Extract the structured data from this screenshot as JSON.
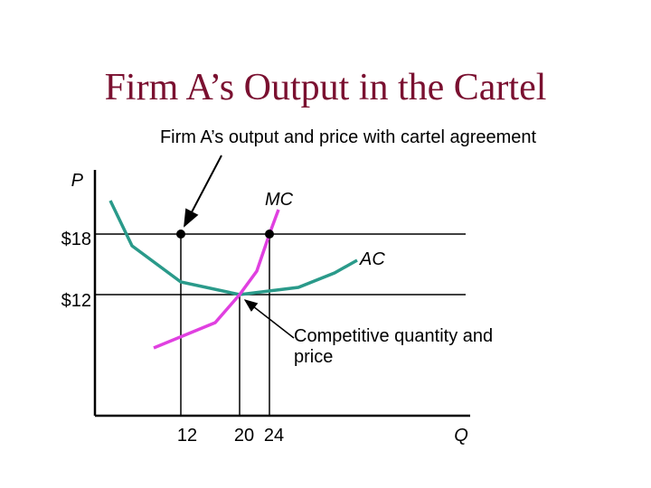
{
  "title": "Firm A’s Output in the Cartel",
  "annotations": {
    "cartel": "Firm A’s output and price with cartel agreement",
    "competitive": [
      "Competitive quantity and",
      "price"
    ]
  },
  "axes": {
    "y_label": "P",
    "x_label": "Q",
    "price_labels": [
      "$18",
      "$12"
    ],
    "quantity_labels": [
      "12",
      "20",
      "24"
    ]
  },
  "curves": {
    "mc": "MC",
    "ac": "AC"
  }
}
